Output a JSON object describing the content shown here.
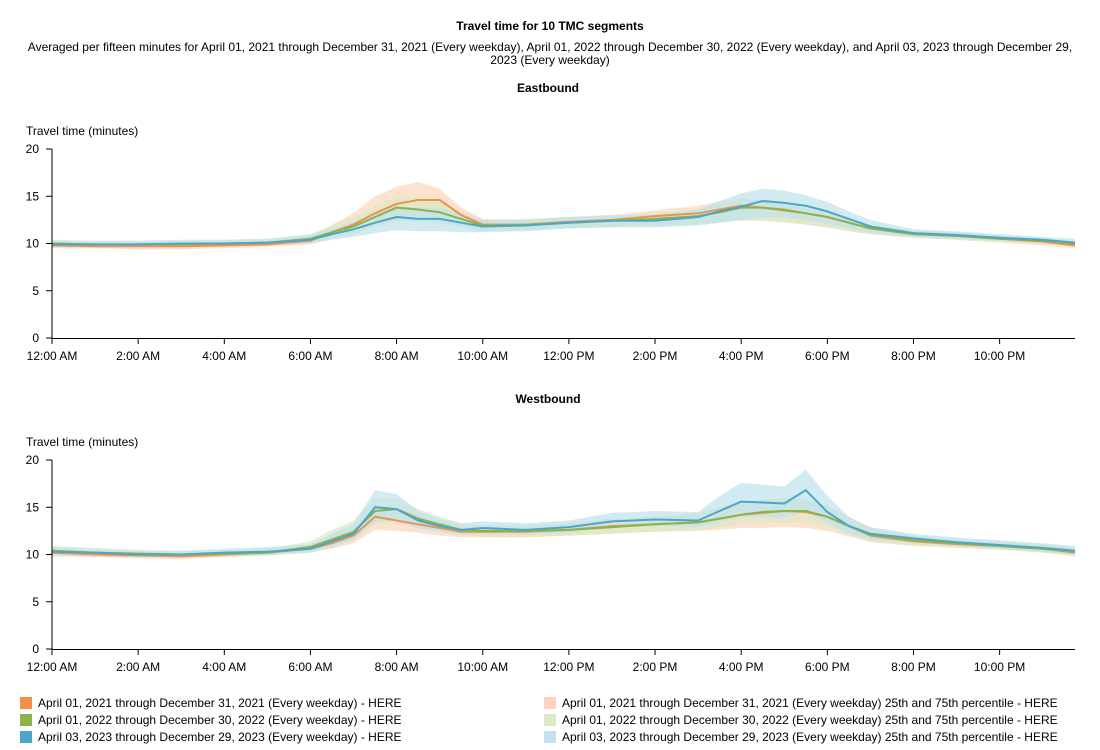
{
  "title": "Travel time for 10 TMC segments",
  "subtitle": "Averaged per fifteen minutes for April 01, 2021 through December 31, 2021 (Every weekday), April 01, 2022 through December 30, 2022 (Every weekday), and April 03, 2023 through December 29, 2023 (Every weekday)",
  "colors": {
    "s2021": "#f0914a",
    "s2022": "#8db248",
    "s2023": "#4aa7c6",
    "b2021": "#fbd5bb",
    "b2022": "#dce9c6",
    "b2023": "#bfe2ee"
  },
  "legend": [
    {
      "label": "April 01, 2021 through December 31, 2021 (Every weekday) - HERE",
      "color": "#f0914a"
    },
    {
      "label": "April 01, 2022 through December 30, 2022 (Every weekday) - HERE",
      "color": "#8db248"
    },
    {
      "label": "April 03, 2023 through December 29, 2023 (Every weekday) - HERE",
      "color": "#4aa7c6"
    },
    {
      "label": "April 01, 2021 through December 31, 2021 (Every weekday) 25th and 75th percentile - HERE",
      "color": "#fbd5bb"
    },
    {
      "label": "April 01, 2022 through December 30, 2022 (Every weekday) 25th and 75th percentile - HERE",
      "color": "#dce9c6"
    },
    {
      "label": "April 03, 2023 through December 29, 2023 (Every weekday) 25th and 75th percentile - HERE",
      "color": "#bfe2ee"
    }
  ],
  "chart_data": [
    {
      "type": "area",
      "title": "Eastbound",
      "ylabel": "Travel time (minutes)",
      "xlabel": "",
      "ylim": [
        0,
        20
      ],
      "yticks": [
        "0",
        "5",
        "10",
        "15",
        "20"
      ],
      "xlim": [
        0,
        23.75
      ],
      "xticks": [
        "12:00 AM",
        "2:00 AM",
        "4:00 AM",
        "6:00 AM",
        "8:00 AM",
        "10:00 AM",
        "12:00 PM",
        "2:00 PM",
        "4:00 PM",
        "6:00 PM",
        "8:00 PM",
        "10:00 PM"
      ],
      "x": [
        0,
        1,
        2,
        3,
        4,
        5,
        6,
        6.5,
        7,
        7.5,
        8,
        8.5,
        9,
        9.5,
        10,
        11,
        12,
        13,
        14,
        15,
        15.5,
        16,
        16.5,
        17,
        17.5,
        18,
        18.5,
        19,
        20,
        21,
        22,
        23,
        23.75
      ],
      "series": [
        {
          "name": "April 01, 2021 through December 31, 2021 (Every weekday) - HERE",
          "color": "#f0914a",
          "values": [
            9.8,
            9.7,
            9.7,
            9.7,
            9.8,
            9.9,
            10.3,
            11.2,
            12.0,
            13.2,
            14.2,
            14.6,
            14.6,
            13.0,
            12.0,
            12.0,
            12.3,
            12.5,
            12.9,
            13.2,
            13.6,
            14.0,
            13.8,
            13.6,
            13.2,
            12.8,
            12.2,
            11.6,
            11.0,
            10.8,
            10.5,
            10.2,
            9.8
          ],
          "p25": [
            9.5,
            9.5,
            9.4,
            9.4,
            9.5,
            9.6,
            9.9,
            10.5,
            11.0,
            11.8,
            12.3,
            12.6,
            12.5,
            11.8,
            11.3,
            11.4,
            11.6,
            11.8,
            12.0,
            12.1,
            12.3,
            12.5,
            12.4,
            12.3,
            12.0,
            11.7,
            11.3,
            11.0,
            10.6,
            10.4,
            10.1,
            9.8,
            9.5
          ],
          "p75": [
            10.2,
            10.1,
            10.0,
            10.0,
            10.2,
            10.3,
            10.8,
            12.0,
            13.2,
            15.0,
            16.0,
            16.5,
            15.8,
            13.8,
            12.6,
            12.5,
            12.8,
            13.0,
            13.5,
            14.0,
            14.4,
            14.8,
            14.5,
            14.2,
            13.8,
            13.3,
            12.6,
            12.0,
            11.4,
            11.1,
            10.8,
            10.5,
            10.1
          ]
        },
        {
          "name": "April 01, 2022 through December 30, 2022 (Every weekday) - HERE",
          "color": "#8db248",
          "values": [
            10.0,
            9.9,
            9.9,
            9.9,
            10.0,
            10.1,
            10.5,
            11.2,
            11.8,
            12.8,
            13.8,
            13.6,
            13.3,
            12.6,
            11.9,
            12.0,
            12.2,
            12.4,
            12.6,
            12.9,
            13.3,
            13.8,
            13.8,
            13.5,
            13.2,
            12.8,
            12.2,
            11.6,
            11.0,
            10.8,
            10.5,
            10.3,
            10.0
          ],
          "p25": [
            9.7,
            9.6,
            9.6,
            9.6,
            9.7,
            9.8,
            10.1,
            10.6,
            11.0,
            11.8,
            12.4,
            12.3,
            12.1,
            11.7,
            11.3,
            11.4,
            11.6,
            11.7,
            11.8,
            12.0,
            12.2,
            12.4,
            12.4,
            12.2,
            12.0,
            11.7,
            11.3,
            11.0,
            10.6,
            10.4,
            10.2,
            10.0,
            9.7
          ],
          "p75": [
            10.4,
            10.3,
            10.3,
            10.3,
            10.4,
            10.5,
            11.0,
            11.9,
            12.8,
            14.0,
            15.0,
            14.8,
            14.4,
            13.4,
            12.5,
            12.6,
            12.8,
            13.0,
            13.2,
            13.6,
            14.1,
            14.7,
            14.7,
            14.3,
            13.9,
            13.4,
            12.7,
            12.1,
            11.4,
            11.2,
            10.9,
            10.6,
            10.3
          ]
        },
        {
          "name": "April 03, 2023 through December 29, 2023 (Every weekday) - HERE",
          "color": "#4aa7c6",
          "values": [
            9.9,
            9.9,
            9.9,
            10.0,
            10.0,
            10.1,
            10.4,
            11.0,
            11.5,
            12.2,
            12.8,
            12.6,
            12.6,
            12.2,
            11.8,
            11.9,
            12.2,
            12.4,
            12.4,
            12.8,
            13.4,
            13.9,
            14.5,
            14.3,
            14.0,
            13.4,
            12.6,
            11.8,
            11.1,
            10.9,
            10.6,
            10.4,
            10.1
          ],
          "p25": [
            9.6,
            9.6,
            9.6,
            9.7,
            9.7,
            9.8,
            10.0,
            10.4,
            10.7,
            11.1,
            11.4,
            11.3,
            11.3,
            11.2,
            11.2,
            11.3,
            11.6,
            11.7,
            11.7,
            11.9,
            12.2,
            12.5,
            12.8,
            12.7,
            12.5,
            12.1,
            11.6,
            11.1,
            10.7,
            10.5,
            10.3,
            10.1,
            9.8
          ],
          "p75": [
            10.3,
            10.3,
            10.3,
            10.4,
            10.4,
            10.5,
            10.9,
            11.6,
            12.3,
            13.3,
            14.0,
            13.8,
            13.8,
            13.1,
            12.5,
            12.5,
            12.8,
            13.0,
            13.0,
            13.6,
            14.5,
            15.3,
            15.8,
            15.6,
            15.1,
            14.4,
            13.4,
            12.5,
            11.5,
            11.3,
            11.0,
            10.7,
            10.5
          ]
        }
      ]
    },
    {
      "type": "area",
      "title": "Westbound",
      "ylabel": "Travel time (minutes)",
      "xlabel": "",
      "ylim": [
        0,
        20
      ],
      "yticks": [
        "0",
        "5",
        "10",
        "15",
        "20"
      ],
      "xlim": [
        0,
        23.75
      ],
      "xticks": [
        "12:00 AM",
        "2:00 AM",
        "4:00 AM",
        "6:00 AM",
        "8:00 AM",
        "10:00 AM",
        "12:00 PM",
        "2:00 PM",
        "4:00 PM",
        "6:00 PM",
        "8:00 PM",
        "10:00 PM"
      ],
      "x": [
        0,
        1,
        2,
        3,
        4,
        5,
        6,
        6.5,
        7,
        7.5,
        8,
        8.5,
        9,
        9.5,
        10,
        11,
        12,
        13,
        14,
        15,
        15.5,
        16,
        16.5,
        17,
        17.5,
        18,
        18.5,
        19,
        20,
        21,
        22,
        23,
        23.75
      ],
      "series": [
        {
          "name": "April 01, 2021 through December 31, 2021 (Every weekday) - HERE",
          "color": "#f0914a",
          "values": [
            10.2,
            10.0,
            9.9,
            9.8,
            10.0,
            10.2,
            10.6,
            11.2,
            12.0,
            14.0,
            13.6,
            13.2,
            12.8,
            12.4,
            12.4,
            12.4,
            12.6,
            13.0,
            13.2,
            13.4,
            13.8,
            14.2,
            14.4,
            14.6,
            14.5,
            14.0,
            13.0,
            12.0,
            11.4,
            11.1,
            10.9,
            10.6,
            10.2
          ],
          "p25": [
            9.8,
            9.7,
            9.6,
            9.5,
            9.7,
            9.9,
            10.2,
            10.6,
            11.2,
            12.6,
            12.5,
            12.3,
            12.0,
            11.8,
            11.8,
            11.8,
            12.0,
            12.2,
            12.4,
            12.5,
            12.6,
            12.8,
            12.8,
            12.9,
            12.8,
            12.5,
            11.9,
            11.3,
            10.9,
            10.7,
            10.5,
            10.2,
            9.8
          ],
          "p75": [
            10.6,
            10.4,
            10.3,
            10.2,
            10.4,
            10.6,
            11.1,
            12.0,
            13.0,
            15.2,
            14.8,
            14.2,
            13.6,
            13.0,
            13.0,
            13.0,
            13.3,
            13.8,
            14.0,
            14.4,
            15.0,
            15.6,
            15.8,
            16.0,
            15.8,
            15.2,
            14.0,
            12.8,
            12.0,
            11.6,
            11.4,
            11.1,
            10.7
          ]
        },
        {
          "name": "April 01, 2022 through December 30, 2022 (Every weekday) - HERE",
          "color": "#8db248",
          "values": [
            10.4,
            10.2,
            10.1,
            10.0,
            10.1,
            10.2,
            10.8,
            11.6,
            12.4,
            14.6,
            14.8,
            13.8,
            13.2,
            12.6,
            12.5,
            12.5,
            12.6,
            12.9,
            13.2,
            13.4,
            13.8,
            14.2,
            14.5,
            14.6,
            14.6,
            14.0,
            13.0,
            12.1,
            11.5,
            11.2,
            10.9,
            10.6,
            10.3
          ],
          "p25": [
            10.0,
            9.9,
            9.8,
            9.7,
            9.8,
            9.9,
            10.3,
            10.9,
            11.5,
            13.2,
            13.5,
            12.8,
            12.4,
            12.0,
            11.9,
            11.9,
            12.0,
            12.2,
            12.4,
            12.6,
            12.9,
            13.2,
            13.4,
            13.4,
            13.4,
            12.9,
            12.1,
            11.4,
            11.0,
            10.8,
            10.5,
            10.2,
            9.9
          ],
          "p75": [
            10.9,
            10.7,
            10.5,
            10.4,
            10.5,
            10.6,
            11.4,
            12.6,
            13.6,
            16.0,
            16.0,
            14.8,
            14.0,
            13.3,
            13.1,
            13.1,
            13.2,
            13.6,
            14.0,
            14.3,
            14.8,
            15.2,
            15.6,
            15.8,
            15.8,
            15.1,
            13.9,
            12.8,
            12.0,
            11.6,
            11.3,
            11.0,
            10.7
          ]
        },
        {
          "name": "April 03, 2023 through December 29, 2023 (Every weekday) - HERE",
          "color": "#4aa7c6",
          "values": [
            10.3,
            10.2,
            10.0,
            10.0,
            10.2,
            10.3,
            10.6,
            11.4,
            12.2,
            15.0,
            14.8,
            13.6,
            13.0,
            12.6,
            12.8,
            12.6,
            12.9,
            13.5,
            13.7,
            13.6,
            14.6,
            15.6,
            15.5,
            15.4,
            16.8,
            14.5,
            13.0,
            12.2,
            11.7,
            11.3,
            11.0,
            10.7,
            10.4
          ],
          "p25": [
            9.9,
            9.8,
            9.7,
            9.7,
            9.8,
            9.9,
            10.2,
            10.8,
            11.5,
            13.5,
            13.5,
            12.8,
            12.4,
            12.1,
            12.2,
            12.1,
            12.3,
            12.8,
            13.0,
            12.9,
            13.4,
            14.0,
            14.0,
            13.9,
            14.6,
            13.3,
            12.2,
            11.6,
            11.2,
            10.9,
            10.6,
            10.3,
            10.0
          ],
          "p75": [
            10.8,
            10.6,
            10.4,
            10.4,
            10.6,
            10.8,
            11.1,
            12.2,
            13.3,
            16.8,
            16.4,
            14.6,
            13.8,
            13.3,
            13.5,
            13.3,
            13.6,
            14.4,
            14.6,
            14.5,
            16.2,
            17.6,
            17.4,
            17.2,
            19.0,
            16.2,
            14.0,
            12.9,
            12.2,
            11.8,
            11.5,
            11.2,
            10.9
          ]
        }
      ]
    }
  ]
}
